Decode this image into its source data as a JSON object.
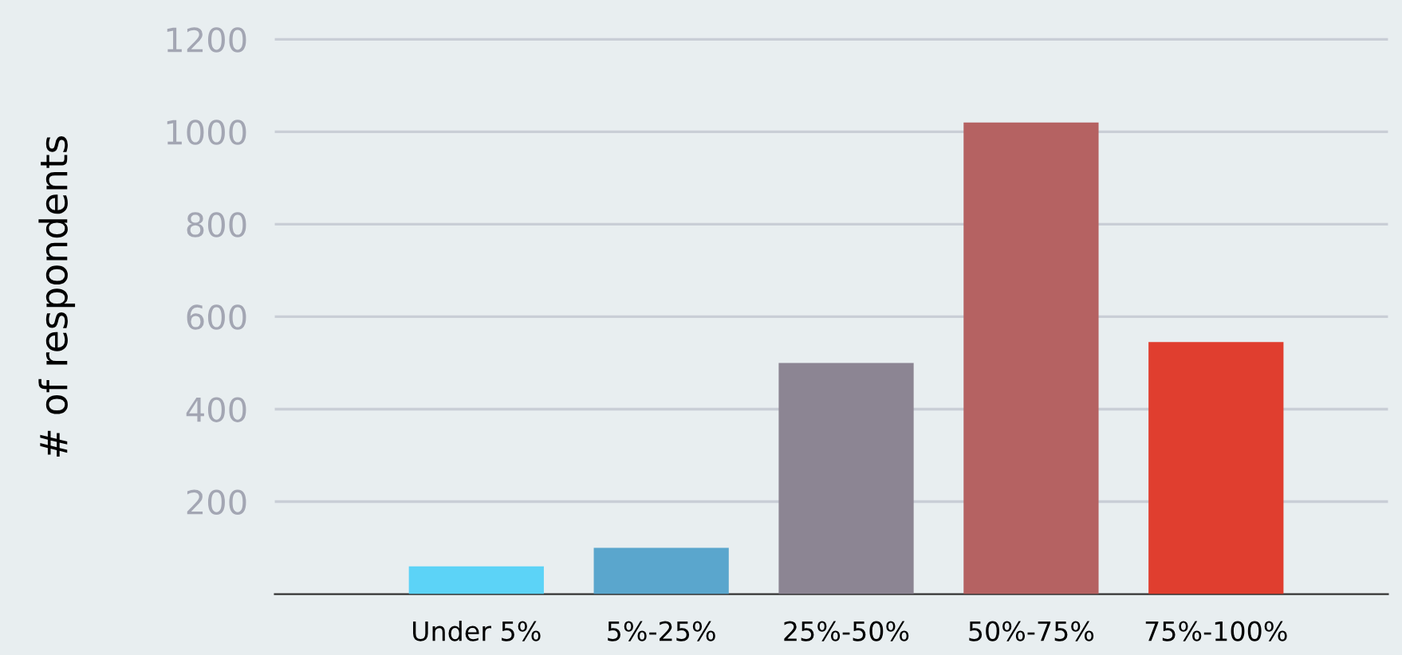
{
  "chart_data": {
    "type": "bar",
    "ylabel": "# of respondents",
    "categories": [
      "Under 5%",
      "5%-25%",
      "25%-50%",
      "50%-75%",
      "75%-100%"
    ],
    "values": [
      60,
      100,
      500,
      1020,
      545
    ],
    "colors": [
      "#5cd3f7",
      "#5aa6cd",
      "#8c8593",
      "#b56262",
      "#e03e2f"
    ],
    "ylim": [
      0,
      1285
    ],
    "yticks": [
      200,
      400,
      600,
      800,
      1000,
      1200
    ],
    "grid": "y",
    "legend": false
  }
}
